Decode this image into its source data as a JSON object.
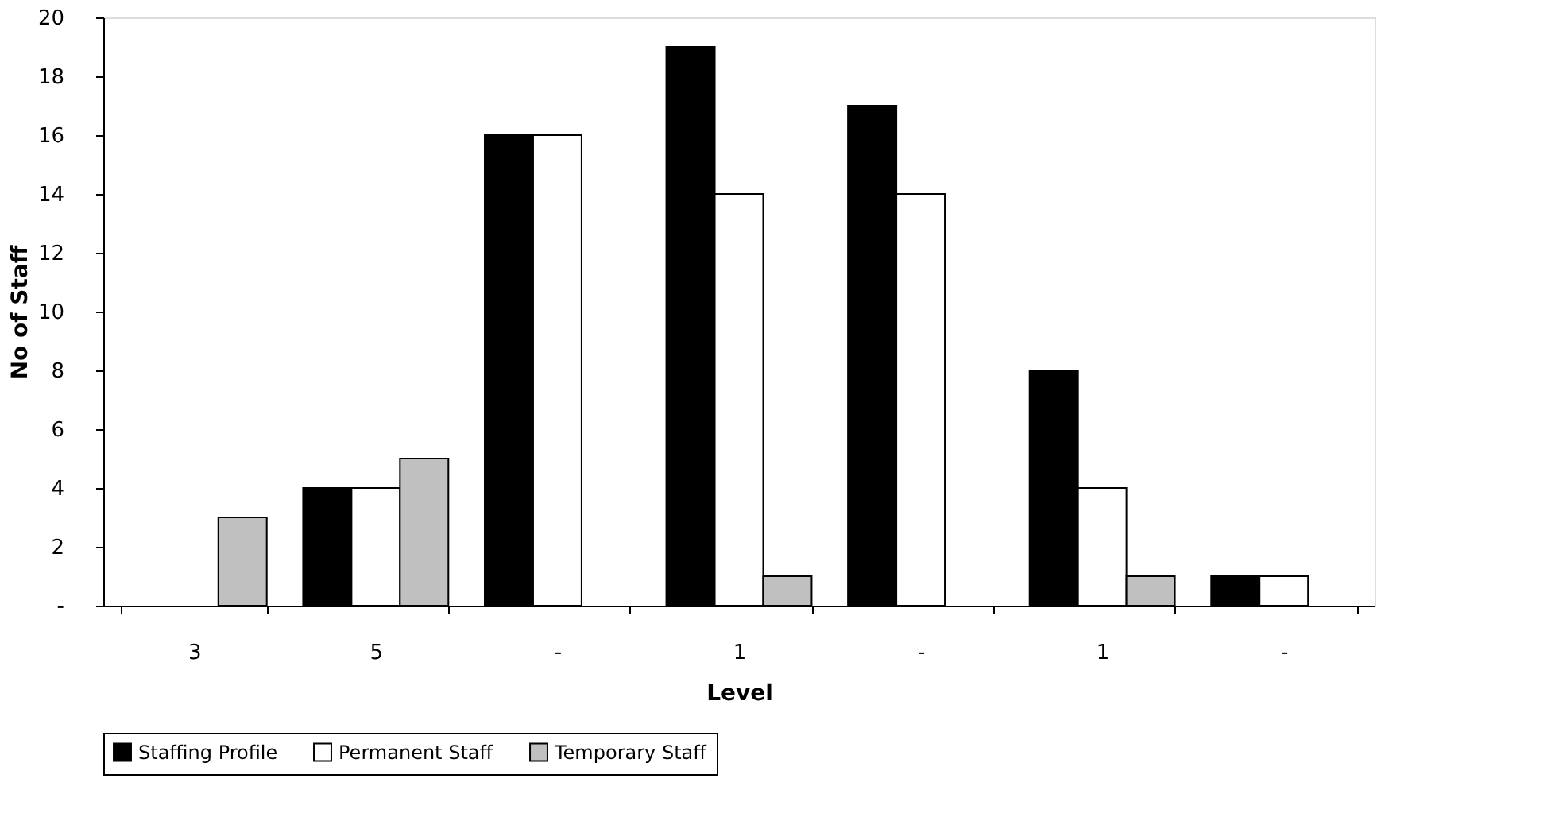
{
  "chart_data": {
    "type": "bar",
    "xlabel": "Level",
    "ylabel": "No of Staff",
    "categories": [
      "3",
      "5",
      "-",
      "1",
      "-",
      "1",
      "-"
    ],
    "series": [
      {
        "name": "Staffing Profile",
        "color": "#000000",
        "values": [
          null,
          4,
          16,
          19,
          17,
          8,
          1
        ]
      },
      {
        "name": "Permanent Staff",
        "color": "#ffffff",
        "values": [
          null,
          4,
          16,
          14,
          14,
          4,
          1
        ]
      },
      {
        "name": "Temporary Staff",
        "color": "#c0c0c0",
        "values": [
          3,
          5,
          null,
          1,
          null,
          1,
          null
        ]
      }
    ],
    "ylim": [
      0,
      20
    ],
    "yticks": [
      {
        "value": 0,
        "label": "-"
      },
      2,
      4,
      6,
      8,
      10,
      12,
      14,
      16,
      18,
      20
    ],
    "grid": false,
    "legend": "bottom"
  }
}
